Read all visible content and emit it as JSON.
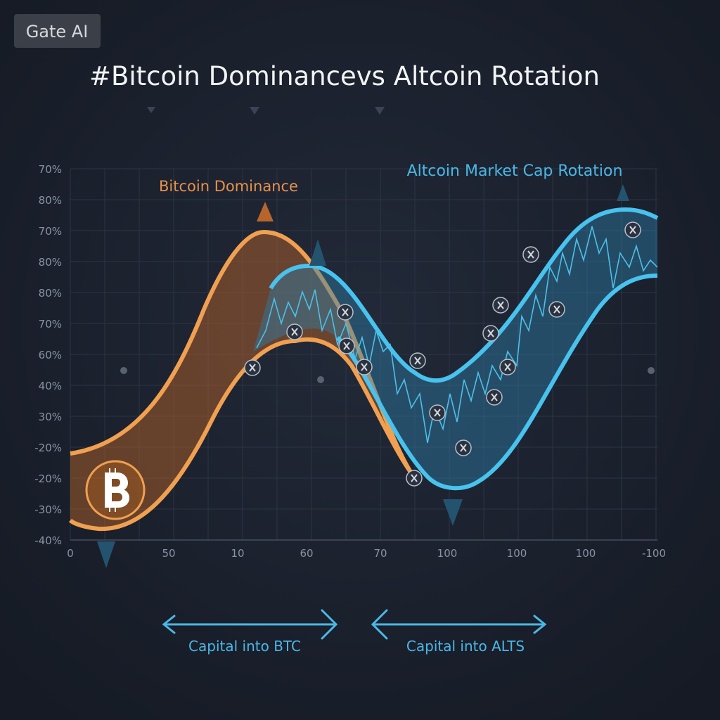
{
  "badge": "Gate AI",
  "title": "#Bitcoin Dominancevs Altcoin Rotation",
  "band_labels": {
    "bitcoin": "Bitcoin Dominance",
    "altcoin": "Altcoin Market Cap Rotation"
  },
  "y_axis_labels": [
    "70%",
    "80%",
    "70%",
    "80%",
    "80%",
    "70%",
    "60%",
    "40%",
    "30%",
    "-20%",
    "-20%",
    "-30%",
    "-40%"
  ],
  "x_axis_labels": [
    "0",
    "50",
    "10",
    "60",
    "70",
    "100",
    "100",
    "100",
    "-100"
  ],
  "flows": {
    "btc": "Capital into BTC",
    "alts": "Capital into ALTS"
  }
}
